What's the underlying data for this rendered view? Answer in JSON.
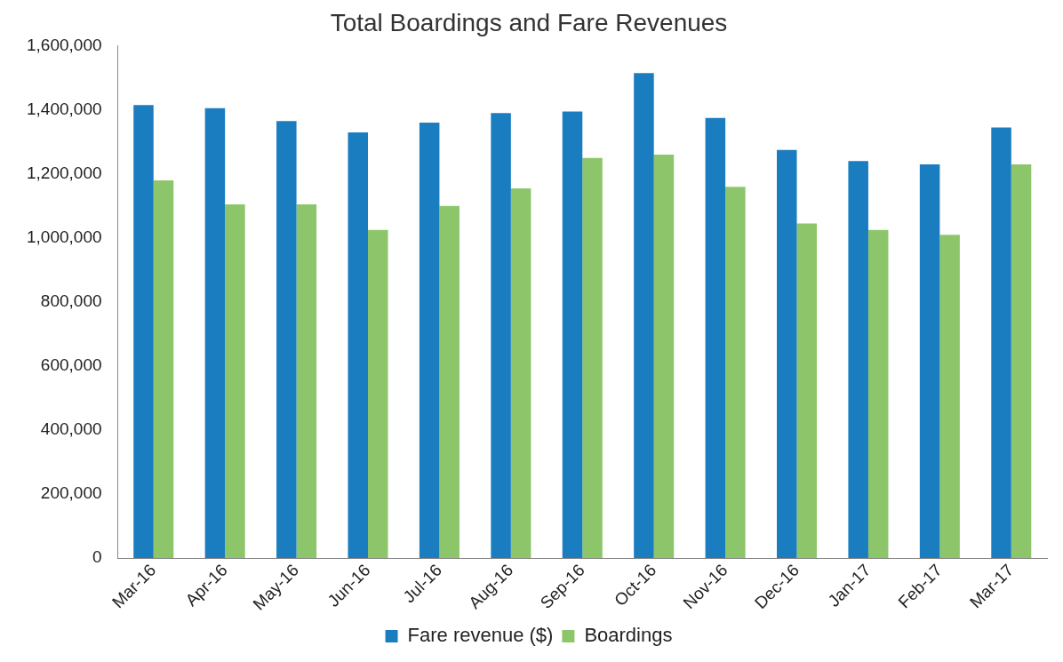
{
  "chart_data": {
    "type": "bar",
    "title": "Total Boardings and Fare Revenues",
    "categories": [
      "Mar-16",
      "Apr-16",
      "May-16",
      "Jun-16",
      "Jul-16",
      "Aug-16",
      "Sep-16",
      "Oct-16",
      "Nov-16",
      "Dec-16",
      "Jan-17",
      "Feb-17",
      "Mar-17"
    ],
    "series": [
      {
        "name": "Fare revenue ($)",
        "color": "#1a7dc0",
        "values": [
          1415000,
          1405000,
          1365000,
          1330000,
          1360000,
          1390000,
          1395000,
          1515000,
          1375000,
          1275000,
          1240000,
          1230000,
          1345000
        ]
      },
      {
        "name": "Boardings",
        "color": "#8dc66a",
        "values": [
          1180000,
          1105000,
          1105000,
          1025000,
          1100000,
          1155000,
          1250000,
          1260000,
          1160000,
          1045000,
          1025000,
          1010000,
          1230000
        ]
      }
    ],
    "ylim": [
      0,
      1600000
    ],
    "yticks": [
      0,
      {
        "value": 200000,
        "label": "200,000"
      },
      {
        "value": 400000,
        "label": "400,000"
      },
      {
        "value": 600000,
        "label": "600,000"
      },
      {
        "value": 800000,
        "label": "800,000"
      },
      {
        "value": 1000000,
        "label": "1,000,000"
      },
      {
        "value": 1200000,
        "label": "1,200,000"
      },
      {
        "value": 1400000,
        "label": "1,400,000"
      },
      {
        "value": 1600000,
        "label": "1,600,000"
      }
    ],
    "grid": false,
    "legend": "bottom"
  }
}
